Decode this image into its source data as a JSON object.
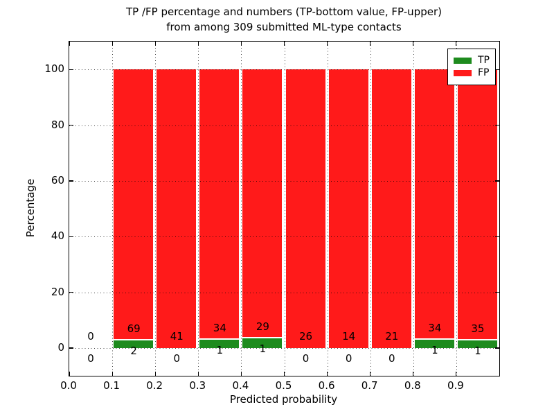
{
  "figure": {
    "title_line1": "TP /FP percentage and numbers (TP-bottom value, FP-upper)",
    "title_line2": "from among 309 submitted ML-type contacts"
  },
  "chart_data": {
    "type": "bar",
    "subtype": "stacked-percentage-histogram",
    "title": "TP /FP percentage and numbers (TP-bottom value, FP-upper) from among 309 submitted ML-type contacts",
    "xlabel": "Predicted probability",
    "ylabel": "Percentage",
    "xlim": [
      0.0,
      1.0
    ],
    "ylim": [
      -10,
      110
    ],
    "xticks": [
      "0.0",
      "0.1",
      "0.2",
      "0.3",
      "0.4",
      "0.5",
      "0.6",
      "0.7",
      "0.8",
      "0.9"
    ],
    "yticks": [
      0,
      20,
      40,
      60,
      80,
      100
    ],
    "grid": true,
    "total_contacts": 309,
    "stacking": "each non-empty bin stacks to 100%: TP share (green, bottom) = tp/(tp+fp)*100, FP share (red, top)",
    "bins": [
      {
        "range": [
          0.0,
          0.1
        ],
        "tp": 0,
        "fp": 0
      },
      {
        "range": [
          0.1,
          0.2
        ],
        "tp": 2,
        "fp": 69
      },
      {
        "range": [
          0.2,
          0.3
        ],
        "tp": 0,
        "fp": 41
      },
      {
        "range": [
          0.3,
          0.4
        ],
        "tp": 1,
        "fp": 34
      },
      {
        "range": [
          0.4,
          0.5
        ],
        "tp": 1,
        "fp": 29
      },
      {
        "range": [
          0.5,
          0.6
        ],
        "tp": 0,
        "fp": 26
      },
      {
        "range": [
          0.6,
          0.7
        ],
        "tp": 0,
        "fp": 14
      },
      {
        "range": [
          0.7,
          0.8
        ],
        "tp": 0,
        "fp": 21
      },
      {
        "range": [
          0.8,
          0.9
        ],
        "tp": 1,
        "fp": 34
      },
      {
        "range": [
          0.9,
          1.0
        ],
        "tp": 1,
        "fp": 35
      }
    ],
    "legend": {
      "position": "upper-right",
      "entries": [
        {
          "label": "TP",
          "color": "#1e8b1e"
        },
        {
          "label": "FP",
          "color": "#ff1a1a"
        }
      ]
    },
    "colors": {
      "tp_green": "#1e8b1e",
      "fp_red": "#ff1a1a",
      "grid": "#000000",
      "background": "#ffffff"
    }
  }
}
